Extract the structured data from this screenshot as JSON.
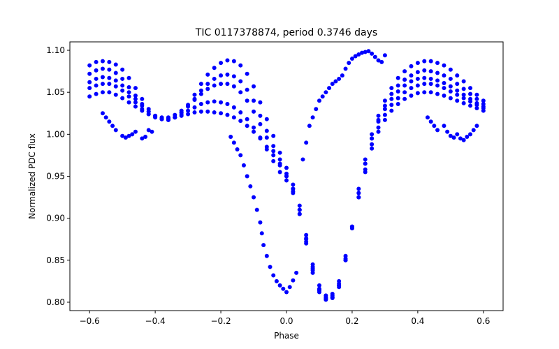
{
  "chart_data": {
    "type": "scatter",
    "title": "TIC 0117378874, period 0.3746 days",
    "xlabel": "Phase",
    "ylabel": "Normalized PDC flux",
    "xlim": [
      -0.66,
      0.66
    ],
    "ylim": [
      0.79,
      1.11
    ],
    "xticks": [
      -0.6,
      -0.4,
      -0.2,
      0.0,
      0.2,
      0.4,
      0.6
    ],
    "xtick_labels": [
      "−0.6",
      "−0.4",
      "−0.2",
      "0.0",
      "0.2",
      "0.4",
      "0.6"
    ],
    "yticks": [
      0.8,
      0.85,
      0.9,
      0.95,
      1.0,
      1.05,
      1.1
    ],
    "ytick_labels": [
      "0.80",
      "0.85",
      "0.90",
      "0.95",
      "1.00",
      "1.05",
      "1.10"
    ],
    "grid": false,
    "marker_color": "#0000ff",
    "series": [
      {
        "x": [
          -0.6,
          -0.58,
          -0.56,
          -0.54,
          -0.52,
          -0.5,
          -0.48,
          -0.46,
          -0.44,
          -0.42,
          -0.4,
          -0.38,
          -0.36,
          -0.34,
          -0.32,
          -0.3,
          -0.28,
          -0.26,
          -0.24,
          -0.22,
          -0.2,
          -0.18,
          -0.16,
          -0.14,
          -0.12,
          -0.1,
          -0.08,
          -0.06,
          -0.04,
          -0.02,
          0.0,
          0.02,
          0.04,
          0.06,
          0.08,
          0.1,
          0.12,
          0.14,
          0.16,
          0.18,
          0.2,
          0.22,
          0.24,
          0.26,
          0.28,
          0.3,
          0.32,
          0.34,
          0.36,
          0.38,
          0.4,
          0.42,
          0.44,
          0.46,
          0.48,
          0.5,
          0.52,
          0.54,
          0.56,
          0.58,
          0.6
        ],
        "y": [
          1.082,
          1.086,
          1.087,
          1.086,
          1.083,
          1.077,
          1.067,
          1.055,
          1.042,
          1.03,
          1.022,
          1.018,
          1.017,
          1.02,
          1.026,
          1.035,
          1.047,
          1.06,
          1.071,
          1.079,
          1.085,
          1.088,
          1.087,
          1.082,
          1.072,
          1.057,
          1.038,
          1.018,
          0.998,
          0.978,
          0.96,
          0.94,
          0.915,
          0.88,
          0.845,
          0.82,
          0.808,
          0.806,
          0.82,
          0.85,
          0.89,
          0.935,
          0.97,
          1.0,
          1.022,
          1.04,
          1.055,
          1.067,
          1.075,
          1.081,
          1.085,
          1.087,
          1.087,
          1.085,
          1.082,
          1.077,
          1.07,
          1.063,
          1.055,
          1.047,
          1.04
        ]
      },
      {
        "x": [
          -0.6,
          -0.58,
          -0.56,
          -0.54,
          -0.52,
          -0.5,
          -0.48,
          -0.46,
          -0.44,
          -0.42,
          -0.4,
          -0.38,
          -0.36,
          -0.34,
          -0.32,
          -0.3,
          -0.28,
          -0.26,
          -0.24,
          -0.22,
          -0.2,
          -0.18,
          -0.16,
          -0.14,
          -0.12,
          -0.1,
          -0.08,
          -0.06,
          -0.04,
          -0.02,
          0.0,
          0.02,
          0.04,
          0.06,
          0.08,
          0.1,
          0.12,
          0.14,
          0.16,
          0.18,
          0.2,
          0.22,
          0.24,
          0.26,
          0.28,
          0.3,
          0.32,
          0.34,
          0.36,
          0.38,
          0.4,
          0.42,
          0.44,
          0.46,
          0.48,
          0.5,
          0.52,
          0.54,
          0.56,
          0.58,
          0.6
        ],
        "y": [
          1.062,
          1.066,
          1.068,
          1.067,
          1.064,
          1.058,
          1.05,
          1.042,
          1.034,
          1.027,
          1.022,
          1.02,
          1.02,
          1.023,
          1.028,
          1.034,
          1.041,
          1.048,
          1.054,
          1.058,
          1.06,
          1.06,
          1.057,
          1.05,
          1.04,
          1.027,
          1.012,
          0.996,
          0.98,
          0.965,
          0.95,
          0.932,
          0.905,
          0.87,
          0.835,
          0.812,
          0.803,
          0.805,
          0.818,
          0.85,
          0.89,
          0.93,
          0.965,
          0.995,
          1.015,
          1.03,
          1.042,
          1.051,
          1.058,
          1.063,
          1.066,
          1.067,
          1.066,
          1.064,
          1.061,
          1.057,
          1.052,
          1.047,
          1.042,
          1.037,
          1.033
        ]
      },
      {
        "x": [
          -0.6,
          -0.58,
          -0.56,
          -0.54,
          -0.52,
          -0.5,
          -0.48,
          -0.46,
          -0.44,
          -0.42,
          -0.4,
          -0.38,
          -0.36,
          -0.34,
          -0.32,
          -0.3,
          -0.28,
          -0.26,
          -0.24,
          -0.22,
          -0.2,
          -0.18,
          -0.16,
          -0.14,
          -0.12,
          -0.1,
          -0.08,
          -0.06,
          -0.04,
          -0.02,
          0.0,
          0.02,
          0.04,
          0.06,
          0.08,
          0.1,
          0.12,
          0.14,
          0.16,
          0.18,
          0.2,
          0.22,
          0.24,
          0.26,
          0.28,
          0.3,
          0.32,
          0.34,
          0.36,
          0.38,
          0.4,
          0.42,
          0.44,
          0.46,
          0.48,
          0.5,
          0.52,
          0.54,
          0.56,
          0.58,
          0.6
        ],
        "y": [
          1.045,
          1.048,
          1.05,
          1.05,
          1.047,
          1.043,
          1.038,
          1.033,
          1.028,
          1.024,
          1.021,
          1.019,
          1.019,
          1.02,
          1.022,
          1.024,
          1.026,
          1.027,
          1.027,
          1.026,
          1.025,
          1.023,
          1.02,
          1.016,
          1.01,
          1.003,
          0.995,
          0.985,
          0.975,
          0.963,
          0.95,
          0.935,
          0.91,
          0.875,
          0.84,
          0.815,
          0.806,
          0.81,
          0.825,
          0.855,
          0.89,
          0.925,
          0.955,
          0.983,
          1.003,
          1.017,
          1.028,
          1.036,
          1.042,
          1.046,
          1.049,
          1.05,
          1.05,
          1.048,
          1.046,
          1.043,
          1.04,
          1.037,
          1.034,
          1.031,
          1.028
        ]
      },
      {
        "x": [
          -0.6,
          -0.58,
          -0.56,
          -0.54,
          -0.52,
          -0.5,
          -0.48,
          -0.46,
          -0.44,
          -0.42,
          -0.4,
          -0.38,
          -0.36,
          -0.34,
          -0.32,
          -0.3,
          -0.28,
          -0.26,
          -0.24,
          -0.22,
          -0.2,
          -0.18,
          -0.16,
          -0.14,
          -0.12,
          -0.1,
          -0.08,
          -0.06,
          -0.04,
          -0.02,
          0.0,
          0.02,
          0.04,
          0.06,
          0.08,
          0.1,
          0.12,
          0.14,
          0.16,
          0.18,
          0.2,
          0.22,
          0.24,
          0.26,
          0.28,
          0.3,
          0.32,
          0.34,
          0.36,
          0.38,
          0.4,
          0.42,
          0.44,
          0.46,
          0.48,
          0.5,
          0.52,
          0.54,
          0.56,
          0.58,
          0.6
        ],
        "y": [
          1.055,
          1.058,
          1.06,
          1.06,
          1.057,
          1.052,
          1.045,
          1.038,
          1.03,
          1.024,
          1.02,
          1.018,
          1.018,
          1.02,
          1.024,
          1.028,
          1.032,
          1.036,
          1.038,
          1.039,
          1.038,
          1.036,
          1.032,
          1.026,
          1.018,
          1.008,
          0.996,
          0.982,
          0.968,
          0.955,
          0.945,
          0.93,
          0.905,
          0.872,
          0.838,
          0.814,
          0.804,
          0.808,
          0.822,
          0.852,
          0.888,
          0.925,
          0.958,
          0.988,
          1.008,
          1.023,
          1.035,
          1.043,
          1.05,
          1.055,
          1.058,
          1.06,
          1.06,
          1.058,
          1.055,
          1.051,
          1.047,
          1.043,
          1.039,
          1.035,
          1.031
        ]
      },
      {
        "x": [
          -0.6,
          -0.58,
          -0.56,
          -0.54,
          -0.52,
          -0.5,
          -0.48,
          -0.46,
          -0.44,
          -0.42,
          -0.4,
          -0.38,
          -0.36,
          -0.34,
          -0.32,
          -0.3,
          -0.28,
          -0.26,
          -0.24,
          -0.22,
          -0.2,
          -0.18,
          -0.16,
          -0.14,
          -0.12,
          -0.1,
          -0.08,
          -0.06,
          -0.04,
          -0.02,
          0.0,
          0.02,
          0.04,
          0.06,
          0.08,
          0.1,
          0.12,
          0.14,
          0.16,
          0.18,
          0.2,
          0.22,
          0.24,
          0.26,
          0.28,
          0.3,
          0.32,
          0.34,
          0.36,
          0.38,
          0.4,
          0.42,
          0.44,
          0.46,
          0.48,
          0.5,
          0.52,
          0.54,
          0.56,
          0.58,
          0.6
        ],
        "y": [
          1.072,
          1.076,
          1.078,
          1.077,
          1.073,
          1.066,
          1.056,
          1.046,
          1.036,
          1.027,
          1.021,
          1.018,
          1.017,
          1.02,
          1.026,
          1.033,
          1.042,
          1.052,
          1.06,
          1.066,
          1.07,
          1.071,
          1.069,
          1.063,
          1.053,
          1.04,
          1.022,
          1.004,
          0.986,
          0.97,
          0.953,
          0.935,
          0.91,
          0.876,
          0.842,
          0.816,
          0.805,
          0.806,
          0.82,
          0.85,
          0.89,
          0.93,
          0.965,
          0.995,
          1.017,
          1.034,
          1.048,
          1.058,
          1.065,
          1.07,
          1.074,
          1.076,
          1.075,
          1.073,
          1.07,
          1.066,
          1.06,
          1.054,
          1.048,
          1.042,
          1.036
        ]
      },
      {
        "x": [
          -0.56,
          -0.55,
          -0.54,
          -0.53,
          -0.52,
          -0.5,
          -0.49,
          -0.48,
          -0.47,
          -0.46,
          -0.44,
          -0.43,
          -0.42,
          -0.41
        ],
        "y": [
          1.025,
          1.02,
          1.015,
          1.01,
          1.005,
          0.998,
          0.996,
          0.998,
          1.0,
          1.003,
          0.995,
          0.997,
          1.005,
          1.003
        ]
      },
      {
        "x": [
          0.43,
          0.44,
          0.45,
          0.46,
          0.48,
          0.49,
          0.5,
          0.51,
          0.52,
          0.53,
          0.54,
          0.55,
          0.56,
          0.57,
          0.58
        ],
        "y": [
          1.02,
          1.015,
          1.01,
          1.005,
          1.01,
          1.003,
          0.998,
          0.996,
          1.0,
          0.995,
          0.993,
          0.997,
          1.0,
          1.005,
          1.01
        ]
      },
      {
        "x": [
          -0.17,
          -0.16,
          -0.15,
          -0.14,
          -0.13,
          -0.12,
          -0.11,
          -0.1,
          -0.09,
          -0.08,
          -0.075,
          -0.07,
          -0.06,
          -0.05,
          -0.04,
          -0.03,
          -0.02,
          -0.01,
          0.0,
          0.01,
          0.02,
          0.03
        ],
        "y": [
          0.997,
          0.99,
          0.982,
          0.975,
          0.963,
          0.95,
          0.938,
          0.925,
          0.91,
          0.895,
          0.882,
          0.868,
          0.855,
          0.842,
          0.832,
          0.825,
          0.82,
          0.816,
          0.812,
          0.818,
          0.826,
          0.835
        ]
      },
      {
        "x": [
          0.05,
          0.06,
          0.07,
          0.08,
          0.09,
          0.1,
          0.11,
          0.12,
          0.13,
          0.14,
          0.15,
          0.16,
          0.17,
          0.18,
          0.19,
          0.2,
          0.21,
          0.22,
          0.23,
          0.24,
          0.25,
          0.26,
          0.27,
          0.28,
          0.29,
          0.3
        ],
        "y": [
          0.97,
          0.99,
          1.01,
          1.02,
          1.03,
          1.04,
          1.045,
          1.05,
          1.055,
          1.06,
          1.063,
          1.066,
          1.07,
          1.078,
          1.085,
          1.09,
          1.093,
          1.095,
          1.097,
          1.098,
          1.099,
          1.096,
          1.092,
          1.088,
          1.086,
          1.094
        ]
      }
    ]
  }
}
